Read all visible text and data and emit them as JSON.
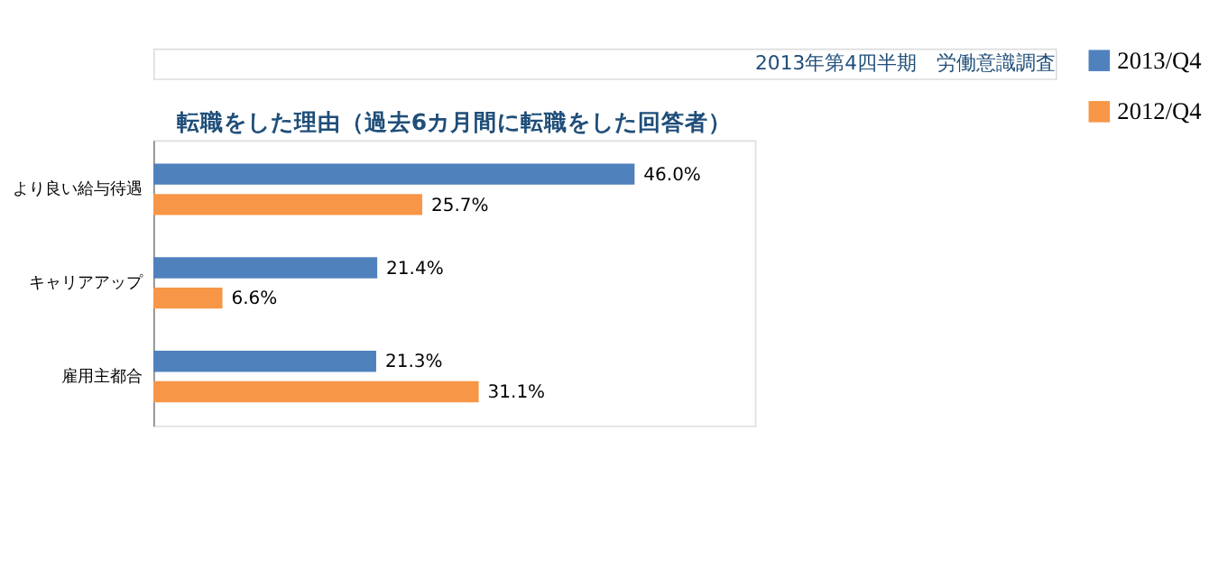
{
  "chart_data": {
    "type": "bar",
    "orientation": "horizontal",
    "title": "転職をした理由（過去6カ月間に転職をした回答者）",
    "annotations": [
      "2013年第4四半期　労働意識調査"
    ],
    "categories": [
      "より良い給与待遇",
      "キャリアアップ",
      "雇用主都合"
    ],
    "series": [
      {
        "name": "2013/Q4",
        "color": "#4f81bd",
        "values": [
          46.0,
          21.4,
          21.3
        ],
        "value_labels": [
          "46.0%",
          "21.4%",
          "21.3%"
        ]
      },
      {
        "name": "2012/Q4",
        "color": "#f79646",
        "values": [
          25.7,
          6.6,
          31.1
        ],
        "value_labels": [
          "25.7%",
          "6.6%",
          "31.1%"
        ]
      }
    ],
    "legend": "right",
    "grid": false
  }
}
